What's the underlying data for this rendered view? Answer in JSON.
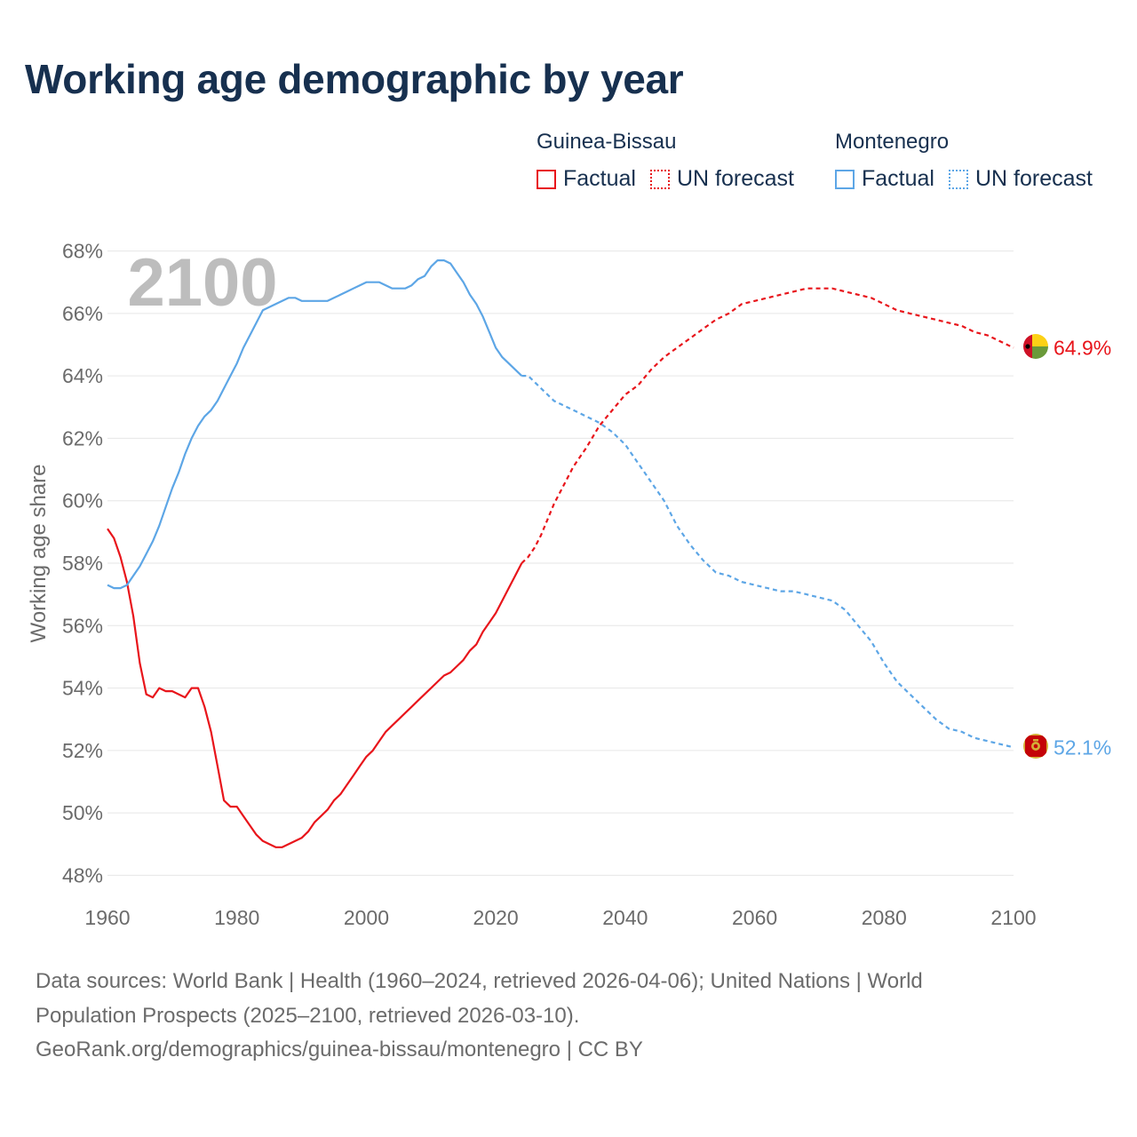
{
  "title": "Working age demographic by year",
  "legend": [
    {
      "country": "Guinea-Bissau",
      "color": "#e8151b",
      "factual_label": "Factual",
      "forecast_label": "UN forecast"
    },
    {
      "country": "Montenegro",
      "color": "#5da6e6",
      "factual_label": "Factual",
      "forecast_label": "UN forecast"
    }
  ],
  "year_watermark": "2100",
  "footer": {
    "line1": "Data sources: World Bank | Health (1960–2024, retrieved 2026-04-06); United Nations | World",
    "line2": "Population Prospects (2025–2100, retrieved 2026-03-10).",
    "line3": "GeoRank.org/demographics/guinea-bissau/montenegro | CC BY"
  },
  "chart_data": {
    "type": "line",
    "title": "Working age demographic by year",
    "xlabel": "",
    "ylabel": "Working age share",
    "xlim": [
      1960,
      2100
    ],
    "ylim": [
      47.5,
      68.5
    ],
    "x_ticks": [
      1960,
      1980,
      2000,
      2020,
      2040,
      2060,
      2080,
      2100
    ],
    "y_ticks": [
      48,
      50,
      52,
      54,
      56,
      58,
      60,
      62,
      64,
      66,
      68
    ],
    "y_tick_labels": [
      "48%",
      "50%",
      "52%",
      "54%",
      "56%",
      "58%",
      "60%",
      "62%",
      "64%",
      "66%",
      "68%"
    ],
    "factual_end_year": 2024,
    "series": [
      {
        "name": "Guinea-Bissau",
        "color": "#e8151b",
        "end_label": "64.9%",
        "points": [
          [
            1960,
            59.1
          ],
          [
            1961,
            58.8
          ],
          [
            1962,
            58.2
          ],
          [
            1963,
            57.4
          ],
          [
            1964,
            56.3
          ],
          [
            1965,
            54.8
          ],
          [
            1966,
            53.8
          ],
          [
            1967,
            53.7
          ],
          [
            1968,
            54.0
          ],
          [
            1969,
            53.9
          ],
          [
            1970,
            53.9
          ],
          [
            1971,
            53.8
          ],
          [
            1972,
            53.7
          ],
          [
            1973,
            54.0
          ],
          [
            1974,
            54.0
          ],
          [
            1975,
            53.4
          ],
          [
            1976,
            52.6
          ],
          [
            1977,
            51.5
          ],
          [
            1978,
            50.4
          ],
          [
            1979,
            50.2
          ],
          [
            1980,
            50.2
          ],
          [
            1981,
            49.9
          ],
          [
            1982,
            49.6
          ],
          [
            1983,
            49.3
          ],
          [
            1984,
            49.1
          ],
          [
            1985,
            49.0
          ],
          [
            1986,
            48.9
          ],
          [
            1987,
            48.9
          ],
          [
            1988,
            49.0
          ],
          [
            1989,
            49.1
          ],
          [
            1990,
            49.2
          ],
          [
            1991,
            49.4
          ],
          [
            1992,
            49.7
          ],
          [
            1993,
            49.9
          ],
          [
            1994,
            50.1
          ],
          [
            1995,
            50.4
          ],
          [
            1996,
            50.6
          ],
          [
            1997,
            50.9
          ],
          [
            1998,
            51.2
          ],
          [
            1999,
            51.5
          ],
          [
            2000,
            51.8
          ],
          [
            2001,
            52.0
          ],
          [
            2002,
            52.3
          ],
          [
            2003,
            52.6
          ],
          [
            2004,
            52.8
          ],
          [
            2005,
            53.0
          ],
          [
            2006,
            53.2
          ],
          [
            2007,
            53.4
          ],
          [
            2008,
            53.6
          ],
          [
            2009,
            53.8
          ],
          [
            2010,
            54.0
          ],
          [
            2011,
            54.2
          ],
          [
            2012,
            54.4
          ],
          [
            2013,
            54.5
          ],
          [
            2014,
            54.7
          ],
          [
            2015,
            54.9
          ],
          [
            2016,
            55.2
          ],
          [
            2017,
            55.4
          ],
          [
            2018,
            55.8
          ],
          [
            2019,
            56.1
          ],
          [
            2020,
            56.4
          ],
          [
            2021,
            56.8
          ],
          [
            2022,
            57.2
          ],
          [
            2023,
            57.6
          ],
          [
            2024,
            58.0
          ],
          [
            2025,
            58.2
          ],
          [
            2026,
            58.5
          ],
          [
            2027,
            58.9
          ],
          [
            2028,
            59.4
          ],
          [
            2029,
            59.9
          ],
          [
            2030,
            60.3
          ],
          [
            2032,
            61.1
          ],
          [
            2034,
            61.7
          ],
          [
            2036,
            62.4
          ],
          [
            2038,
            62.9
          ],
          [
            2040,
            63.4
          ],
          [
            2042,
            63.7
          ],
          [
            2044,
            64.2
          ],
          [
            2046,
            64.6
          ],
          [
            2048,
            64.9
          ],
          [
            2050,
            65.2
          ],
          [
            2052,
            65.5
          ],
          [
            2054,
            65.8
          ],
          [
            2056,
            66.0
          ],
          [
            2058,
            66.3
          ],
          [
            2060,
            66.4
          ],
          [
            2062,
            66.5
          ],
          [
            2064,
            66.6
          ],
          [
            2066,
            66.7
          ],
          [
            2068,
            66.8
          ],
          [
            2070,
            66.8
          ],
          [
            2072,
            66.8
          ],
          [
            2074,
            66.7
          ],
          [
            2076,
            66.6
          ],
          [
            2078,
            66.5
          ],
          [
            2080,
            66.3
          ],
          [
            2082,
            66.1
          ],
          [
            2084,
            66.0
          ],
          [
            2086,
            65.9
          ],
          [
            2088,
            65.8
          ],
          [
            2090,
            65.7
          ],
          [
            2092,
            65.6
          ],
          [
            2094,
            65.4
          ],
          [
            2096,
            65.3
          ],
          [
            2098,
            65.1
          ],
          [
            2100,
            64.9
          ]
        ]
      },
      {
        "name": "Montenegro",
        "color": "#5da6e6",
        "end_label": "52.1%",
        "points": [
          [
            1960,
            57.3
          ],
          [
            1961,
            57.2
          ],
          [
            1962,
            57.2
          ],
          [
            1963,
            57.3
          ],
          [
            1964,
            57.6
          ],
          [
            1965,
            57.9
          ],
          [
            1966,
            58.3
          ],
          [
            1967,
            58.7
          ],
          [
            1968,
            59.2
          ],
          [
            1969,
            59.8
          ],
          [
            1970,
            60.4
          ],
          [
            1971,
            60.9
          ],
          [
            1972,
            61.5
          ],
          [
            1973,
            62.0
          ],
          [
            1974,
            62.4
          ],
          [
            1975,
            62.7
          ],
          [
            1976,
            62.9
          ],
          [
            1977,
            63.2
          ],
          [
            1978,
            63.6
          ],
          [
            1979,
            64.0
          ],
          [
            1980,
            64.4
          ],
          [
            1981,
            64.9
          ],
          [
            1982,
            65.3
          ],
          [
            1983,
            65.7
          ],
          [
            1984,
            66.1
          ],
          [
            1985,
            66.2
          ],
          [
            1986,
            66.3
          ],
          [
            1987,
            66.4
          ],
          [
            1988,
            66.5
          ],
          [
            1989,
            66.5
          ],
          [
            1990,
            66.4
          ],
          [
            1991,
            66.4
          ],
          [
            1992,
            66.4
          ],
          [
            1993,
            66.4
          ],
          [
            1994,
            66.4
          ],
          [
            1995,
            66.5
          ],
          [
            1996,
            66.6
          ],
          [
            1997,
            66.7
          ],
          [
            1998,
            66.8
          ],
          [
            1999,
            66.9
          ],
          [
            2000,
            67.0
          ],
          [
            2001,
            67.0
          ],
          [
            2002,
            67.0
          ],
          [
            2003,
            66.9
          ],
          [
            2004,
            66.8
          ],
          [
            2005,
            66.8
          ],
          [
            2006,
            66.8
          ],
          [
            2007,
            66.9
          ],
          [
            2008,
            67.1
          ],
          [
            2009,
            67.2
          ],
          [
            2010,
            67.5
          ],
          [
            2011,
            67.7
          ],
          [
            2012,
            67.7
          ],
          [
            2013,
            67.6
          ],
          [
            2014,
            67.3
          ],
          [
            2015,
            67.0
          ],
          [
            2016,
            66.6
          ],
          [
            2017,
            66.3
          ],
          [
            2018,
            65.9
          ],
          [
            2019,
            65.4
          ],
          [
            2020,
            64.9
          ],
          [
            2021,
            64.6
          ],
          [
            2022,
            64.4
          ],
          [
            2023,
            64.2
          ],
          [
            2024,
            64.0
          ],
          [
            2025,
            64.0
          ],
          [
            2026,
            63.8
          ],
          [
            2027,
            63.6
          ],
          [
            2028,
            63.4
          ],
          [
            2029,
            63.2
          ],
          [
            2030,
            63.1
          ],
          [
            2032,
            62.9
          ],
          [
            2034,
            62.7
          ],
          [
            2036,
            62.5
          ],
          [
            2038,
            62.2
          ],
          [
            2040,
            61.8
          ],
          [
            2042,
            61.2
          ],
          [
            2044,
            60.6
          ],
          [
            2046,
            60.0
          ],
          [
            2048,
            59.2
          ],
          [
            2050,
            58.6
          ],
          [
            2052,
            58.1
          ],
          [
            2054,
            57.7
          ],
          [
            2056,
            57.6
          ],
          [
            2058,
            57.4
          ],
          [
            2060,
            57.3
          ],
          [
            2062,
            57.2
          ],
          [
            2064,
            57.1
          ],
          [
            2066,
            57.1
          ],
          [
            2068,
            57.0
          ],
          [
            2070,
            56.9
          ],
          [
            2072,
            56.8
          ],
          [
            2074,
            56.5
          ],
          [
            2076,
            56.0
          ],
          [
            2078,
            55.5
          ],
          [
            2080,
            54.8
          ],
          [
            2082,
            54.2
          ],
          [
            2084,
            53.8
          ],
          [
            2086,
            53.4
          ],
          [
            2088,
            53.0
          ],
          [
            2090,
            52.7
          ],
          [
            2092,
            52.6
          ],
          [
            2094,
            52.4
          ],
          [
            2096,
            52.3
          ],
          [
            2098,
            52.2
          ],
          [
            2100,
            52.1
          ]
        ]
      }
    ]
  }
}
